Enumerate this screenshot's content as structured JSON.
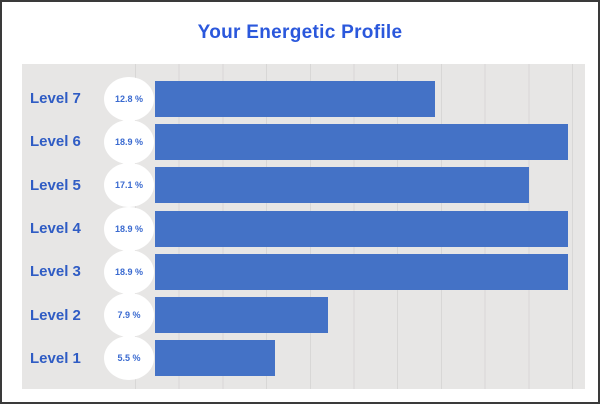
{
  "header": {
    "title": "Your Energetic Profile"
  },
  "colors": {
    "title_text": "#2b58dc",
    "label_text": "#2f5cc4",
    "badge_text": "#3a6ad0",
    "badge_bg": "#ffffff",
    "bar": "#4472c6",
    "plot_bg": "#e7e6e5",
    "gridline": "#d8d7d6",
    "frame_border": "#3a3a3a"
  },
  "chart_data": {
    "type": "bar",
    "orientation": "horizontal",
    "title": "Your Energetic Profile",
    "categories": [
      "Level 7",
      "Level 6",
      "Level 5",
      "Level 4",
      "Level 3",
      "Level 2",
      "Level 1"
    ],
    "values": [
      12.8,
      18.9,
      17.1,
      18.9,
      18.9,
      7.9,
      5.5
    ],
    "value_labels": [
      "12.8 %",
      "18.9 %",
      "17.1 %",
      "18.9 %",
      "18.9 %",
      "7.9 %",
      "5.5 %"
    ],
    "xlabel": "",
    "ylabel": "",
    "xlim": [
      0,
      20
    ],
    "gridline_interval": 2,
    "grid": true,
    "legend": false,
    "axis_tick_labels_visible": false
  }
}
